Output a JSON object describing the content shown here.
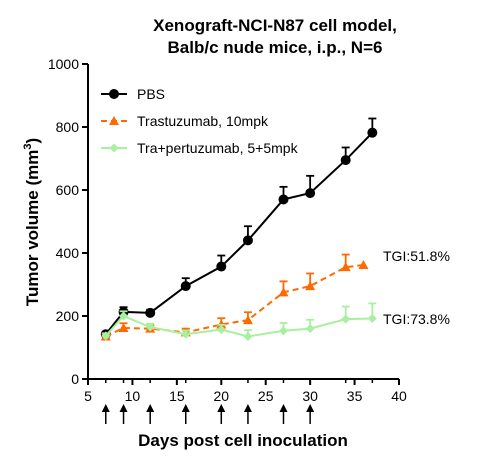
{
  "chart_data": {
    "type": "line",
    "title_line1": "Xenograft-NCI-N87 cell model,",
    "title_line2": "Balb/c nude mice, i.p., N=6",
    "xlabel": "Days post cell inoculation",
    "ylabel": "Tumor volume (mm",
    "ylabel_sup": "3",
    "ylabel_end": ")",
    "xlim": [
      5,
      40
    ],
    "ylim": [
      0,
      1000
    ],
    "xticks": [
      5,
      10,
      15,
      20,
      25,
      30,
      35,
      40
    ],
    "yticks": [
      0,
      200,
      400,
      600,
      800,
      1000
    ],
    "x_minor_ticks": [
      7,
      9,
      12,
      16,
      20,
      23,
      27,
      30,
      34,
      37
    ],
    "legend_position": "top-left",
    "series": [
      {
        "name": "PBS",
        "color": "#000000",
        "line_style": "solid",
        "marker": "circle",
        "x": [
          7,
          9,
          12,
          16,
          20,
          23,
          27,
          30,
          34,
          37
        ],
        "y": [
          142,
          213,
          210,
          295,
          357,
          440,
          570,
          590,
          695,
          782
        ],
        "err": [
          8,
          15,
          10,
          25,
          35,
          45,
          40,
          55,
          40,
          45
        ]
      },
      {
        "name": "Trastuzumab, 10mpk",
        "color": "#ff6a00",
        "line_style": "dashed",
        "marker": "triangle",
        "x": [
          7,
          9,
          12,
          16,
          20,
          23,
          27,
          30,
          34,
          36
        ],
        "y": [
          135,
          162,
          160,
          148,
          173,
          187,
          275,
          295,
          355,
          362
        ],
        "err": [
          8,
          15,
          10,
          12,
          20,
          25,
          35,
          40,
          40,
          0
        ]
      },
      {
        "name": "Tra+pertuzumab, 5+5mpk",
        "color": "#a8f0a0",
        "line_style": "solid",
        "marker": "diamond",
        "x": [
          7,
          9,
          12,
          16,
          20,
          23,
          27,
          30,
          34,
          37
        ],
        "y": [
          137,
          200,
          165,
          142,
          157,
          135,
          153,
          160,
          190,
          192
        ],
        "err": [
          8,
          15,
          10,
          12,
          15,
          20,
          25,
          28,
          40,
          48
        ]
      }
    ],
    "annotations": [
      {
        "text": "TGI:51.8%",
        "series": 1
      },
      {
        "text": "TGI:73.8%",
        "series": 2
      }
    ],
    "dosing_days": [
      7,
      9,
      12,
      16,
      20,
      23,
      27,
      30
    ]
  }
}
